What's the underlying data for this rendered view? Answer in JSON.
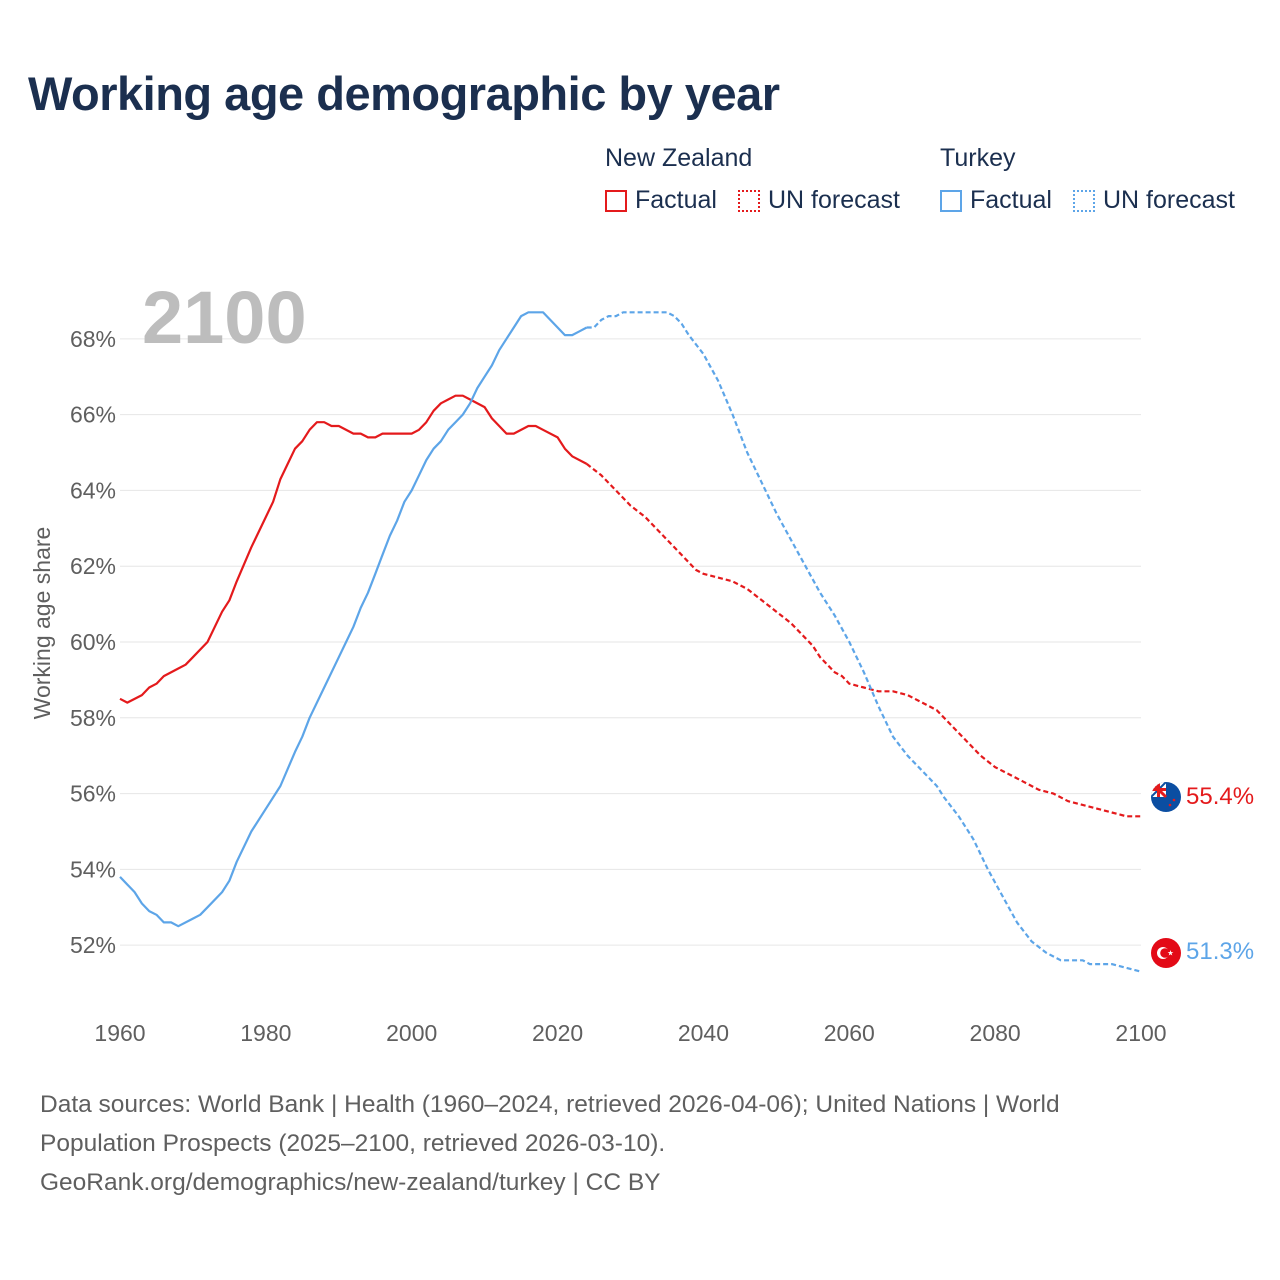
{
  "title": "Working age demographic by year",
  "legend": {
    "groups": [
      {
        "country": "New Zealand",
        "color": "#e41a1c",
        "items": [
          {
            "label": "Factual",
            "style": "solid"
          },
          {
            "label": "UN forecast",
            "style": "dotted"
          }
        ]
      },
      {
        "country": "Turkey",
        "color": "#5da5e8",
        "items": [
          {
            "label": "Factual",
            "style": "solid"
          },
          {
            "label": "UN forecast",
            "style": "dotted"
          }
        ]
      }
    ]
  },
  "year_label": "2100",
  "source": {
    "line1": "Data sources: World Bank | Health (1960–2024, retrieved 2026-04-06); United Nations | World",
    "line2": "Population Prospects (2025–2100, retrieved 2026-03-10).",
    "line3": "GeoRank.org/demographics/new-zealand/turkey | CC BY"
  },
  "chart_data": {
    "type": "line",
    "title": "Working age demographic by year",
    "xlabel": "",
    "ylabel": "Working age share",
    "xlim": [
      1960,
      2100
    ],
    "ylim": [
      50.5,
      69.5
    ],
    "x_ticks": [
      1960,
      1980,
      2000,
      2020,
      2040,
      2060,
      2080,
      2100
    ],
    "x_tick_labels": [
      "1960",
      "1980",
      "2000",
      "2020",
      "2040",
      "2060",
      "2080",
      "2100"
    ],
    "y_ticks": [
      52,
      54,
      56,
      58,
      60,
      62,
      64,
      66,
      68
    ],
    "y_tick_labels": [
      "52%",
      "54%",
      "56%",
      "58%",
      "60%",
      "62%",
      "64%",
      "66%",
      "68%"
    ],
    "grid": true,
    "factual_end_year": 2024,
    "series": [
      {
        "name": "New Zealand",
        "color": "#e41a1c",
        "end_label": "55.4%",
        "marker_icon": "new-zealand-flag-icon",
        "points": [
          [
            1960,
            58.5
          ],
          [
            1961,
            58.4
          ],
          [
            1963,
            58.6
          ],
          [
            1964,
            58.8
          ],
          [
            1965,
            58.9
          ],
          [
            1966,
            59.1
          ],
          [
            1968,
            59.3
          ],
          [
            1969,
            59.4
          ],
          [
            1970,
            59.6
          ],
          [
            1972,
            60.0
          ],
          [
            1974,
            60.8
          ],
          [
            1975,
            61.1
          ],
          [
            1976,
            61.6
          ],
          [
            1978,
            62.5
          ],
          [
            1980,
            63.3
          ],
          [
            1981,
            63.7
          ],
          [
            1982,
            64.3
          ],
          [
            1983,
            64.7
          ],
          [
            1984,
            65.1
          ],
          [
            1985,
            65.3
          ],
          [
            1986,
            65.6
          ],
          [
            1987,
            65.8
          ],
          [
            1988,
            65.8
          ],
          [
            1989,
            65.7
          ],
          [
            1990,
            65.7
          ],
          [
            1992,
            65.5
          ],
          [
            1993,
            65.5
          ],
          [
            1994,
            65.4
          ],
          [
            1995,
            65.4
          ],
          [
            1996,
            65.5
          ],
          [
            1998,
            65.5
          ],
          [
            2000,
            65.5
          ],
          [
            2001,
            65.6
          ],
          [
            2002,
            65.8
          ],
          [
            2003,
            66.1
          ],
          [
            2004,
            66.3
          ],
          [
            2005,
            66.4
          ],
          [
            2006,
            66.5
          ],
          [
            2007,
            66.5
          ],
          [
            2008,
            66.4
          ],
          [
            2010,
            66.2
          ],
          [
            2011,
            65.9
          ],
          [
            2013,
            65.5
          ],
          [
            2014,
            65.5
          ],
          [
            2016,
            65.7
          ],
          [
            2017,
            65.7
          ],
          [
            2018,
            65.6
          ],
          [
            2020,
            65.4
          ],
          [
            2021,
            65.1
          ],
          [
            2022,
            64.9
          ],
          [
            2024,
            64.7
          ],
          [
            2026,
            64.4
          ],
          [
            2028,
            64.0
          ],
          [
            2030,
            63.6
          ],
          [
            2032,
            63.3
          ],
          [
            2034,
            62.9
          ],
          [
            2036,
            62.5
          ],
          [
            2038,
            62.1
          ],
          [
            2039,
            61.9
          ],
          [
            2040,
            61.8
          ],
          [
            2042,
            61.7
          ],
          [
            2044,
            61.6
          ],
          [
            2046,
            61.4
          ],
          [
            2048,
            61.1
          ],
          [
            2050,
            60.8
          ],
          [
            2052,
            60.5
          ],
          [
            2054,
            60.1
          ],
          [
            2055,
            59.9
          ],
          [
            2056,
            59.6
          ],
          [
            2057,
            59.4
          ],
          [
            2058,
            59.2
          ],
          [
            2059,
            59.1
          ],
          [
            2060,
            58.9
          ],
          [
            2062,
            58.8
          ],
          [
            2064,
            58.7
          ],
          [
            2066,
            58.7
          ],
          [
            2068,
            58.6
          ],
          [
            2070,
            58.4
          ],
          [
            2072,
            58.2
          ],
          [
            2074,
            57.8
          ],
          [
            2076,
            57.4
          ],
          [
            2078,
            57.0
          ],
          [
            2080,
            56.7
          ],
          [
            2082,
            56.5
          ],
          [
            2084,
            56.3
          ],
          [
            2086,
            56.1
          ],
          [
            2088,
            56.0
          ],
          [
            2090,
            55.8
          ],
          [
            2092,
            55.7
          ],
          [
            2094,
            55.6
          ],
          [
            2096,
            55.5
          ],
          [
            2098,
            55.4
          ],
          [
            2100,
            55.4
          ]
        ]
      },
      {
        "name": "Turkey",
        "color": "#5da5e8",
        "end_label": "51.3%",
        "marker_icon": "turkey-flag-icon",
        "points": [
          [
            1960,
            53.8
          ],
          [
            1962,
            53.4
          ],
          [
            1963,
            53.1
          ],
          [
            1964,
            52.9
          ],
          [
            1965,
            52.8
          ],
          [
            1966,
            52.6
          ],
          [
            1967,
            52.6
          ],
          [
            1968,
            52.5
          ],
          [
            1970,
            52.7
          ],
          [
            1971,
            52.8
          ],
          [
            1972,
            53.0
          ],
          [
            1974,
            53.4
          ],
          [
            1975,
            53.7
          ],
          [
            1976,
            54.2
          ],
          [
            1978,
            55.0
          ],
          [
            1980,
            55.6
          ],
          [
            1982,
            56.2
          ],
          [
            1984,
            57.1
          ],
          [
            1985,
            57.5
          ],
          [
            1986,
            58.0
          ],
          [
            1988,
            58.8
          ],
          [
            1990,
            59.6
          ],
          [
            1991,
            60.0
          ],
          [
            1992,
            60.4
          ],
          [
            1993,
            60.9
          ],
          [
            1994,
            61.3
          ],
          [
            1995,
            61.8
          ],
          [
            1996,
            62.3
          ],
          [
            1997,
            62.8
          ],
          [
            1998,
            63.2
          ],
          [
            1999,
            63.7
          ],
          [
            2000,
            64.0
          ],
          [
            2001,
            64.4
          ],
          [
            2002,
            64.8
          ],
          [
            2003,
            65.1
          ],
          [
            2004,
            65.3
          ],
          [
            2005,
            65.6
          ],
          [
            2006,
            65.8
          ],
          [
            2007,
            66.0
          ],
          [
            2008,
            66.3
          ],
          [
            2009,
            66.7
          ],
          [
            2010,
            67.0
          ],
          [
            2011,
            67.3
          ],
          [
            2012,
            67.7
          ],
          [
            2013,
            68.0
          ],
          [
            2014,
            68.3
          ],
          [
            2015,
            68.6
          ],
          [
            2016,
            68.7
          ],
          [
            2018,
            68.7
          ],
          [
            2019,
            68.5
          ],
          [
            2021,
            68.1
          ],
          [
            2022,
            68.1
          ],
          [
            2023,
            68.2
          ],
          [
            2024,
            68.3
          ],
          [
            2025,
            68.3
          ],
          [
            2026,
            68.5
          ],
          [
            2027,
            68.6
          ],
          [
            2028,
            68.6
          ],
          [
            2029,
            68.7
          ],
          [
            2031,
            68.7
          ],
          [
            2033,
            68.7
          ],
          [
            2035,
            68.7
          ],
          [
            2036,
            68.6
          ],
          [
            2037,
            68.4
          ],
          [
            2038,
            68.1
          ],
          [
            2040,
            67.6
          ],
          [
            2042,
            66.9
          ],
          [
            2044,
            66.0
          ],
          [
            2046,
            65.0
          ],
          [
            2048,
            64.2
          ],
          [
            2050,
            63.4
          ],
          [
            2052,
            62.7
          ],
          [
            2054,
            62.0
          ],
          [
            2056,
            61.3
          ],
          [
            2058,
            60.7
          ],
          [
            2060,
            60.0
          ],
          [
            2062,
            59.2
          ],
          [
            2064,
            58.3
          ],
          [
            2066,
            57.5
          ],
          [
            2068,
            57.0
          ],
          [
            2070,
            56.6
          ],
          [
            2072,
            56.2
          ],
          [
            2073,
            55.9
          ],
          [
            2075,
            55.4
          ],
          [
            2077,
            54.8
          ],
          [
            2079,
            54.0
          ],
          [
            2081,
            53.3
          ],
          [
            2083,
            52.6
          ],
          [
            2085,
            52.1
          ],
          [
            2087,
            51.8
          ],
          [
            2089,
            51.6
          ],
          [
            2092,
            51.6
          ],
          [
            2093,
            51.5
          ],
          [
            2096,
            51.5
          ],
          [
            2098,
            51.4
          ],
          [
            2100,
            51.3
          ]
        ]
      }
    ]
  }
}
